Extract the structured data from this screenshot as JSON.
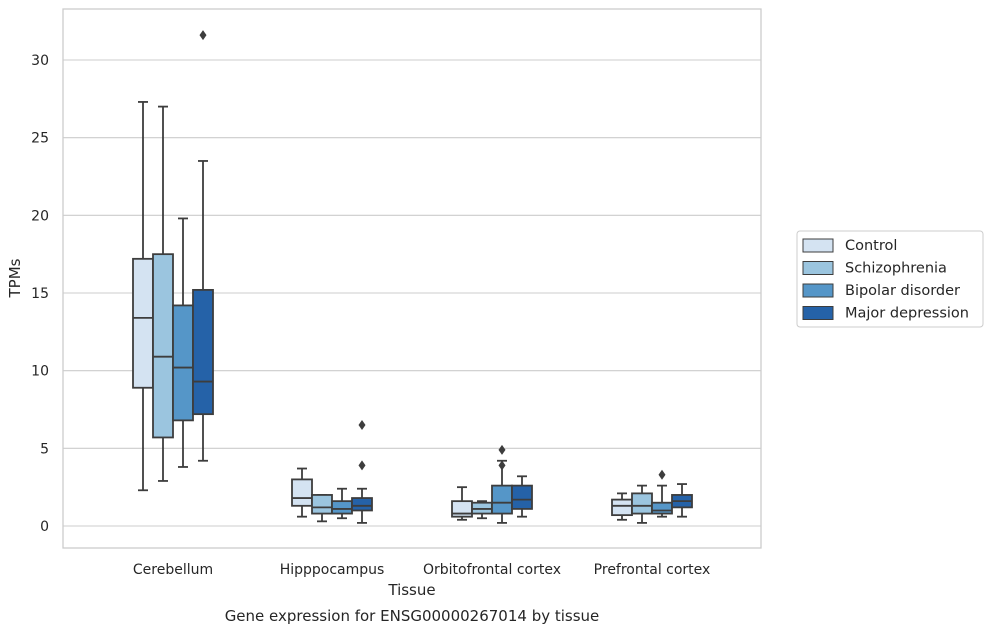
{
  "caption": "Gene expression for ENSG00000267014 by tissue",
  "colors": {
    "Control": "#d4e3f2",
    "Schizophrenia": "#9bc5df",
    "Bipolar disorder": "#5596c8",
    "Major depression": "#2562a8",
    "box_line": "#3d3d3d",
    "grid": "#cccccc",
    "frame": "#cccccc"
  },
  "chart_data": {
    "type": "box",
    "xlabel": "Tissue",
    "ylabel": "TPMs",
    "ylim": [
      -1.4,
      33.0
    ],
    "yticks": [
      0,
      5,
      10,
      15,
      20,
      25,
      30
    ],
    "grid": "horizontal",
    "legend_position": "outside-right",
    "categories": [
      "Cerebellum",
      "Hipppocampus",
      "Orbitofrontal cortex",
      "Prefrontal cortex"
    ],
    "series": [
      {
        "name": "Control",
        "boxes": [
          {
            "whislo": 2.3,
            "q1": 8.9,
            "med": 13.4,
            "q3": 17.2,
            "whishi": 27.3,
            "fliers": []
          },
          {
            "whislo": 0.6,
            "q1": 1.3,
            "med": 1.8,
            "q3": 3.0,
            "whishi": 3.7,
            "fliers": []
          },
          {
            "whislo": 0.4,
            "q1": 0.6,
            "med": 0.8,
            "q3": 1.6,
            "whishi": 2.5,
            "fliers": []
          },
          {
            "whislo": 0.4,
            "q1": 0.7,
            "med": 1.3,
            "q3": 1.7,
            "whishi": 2.1,
            "fliers": []
          }
        ]
      },
      {
        "name": "Schizophrenia",
        "boxes": [
          {
            "whislo": 2.9,
            "q1": 5.7,
            "med": 10.9,
            "q3": 17.5,
            "whishi": 27.0,
            "fliers": []
          },
          {
            "whislo": 0.3,
            "q1": 0.8,
            "med": 1.2,
            "q3": 2.0,
            "whishi": 2.0,
            "fliers": []
          },
          {
            "whislo": 0.5,
            "q1": 0.8,
            "med": 1.1,
            "q3": 1.5,
            "whishi": 1.6,
            "fliers": []
          },
          {
            "whislo": 0.2,
            "q1": 0.8,
            "med": 1.3,
            "q3": 2.1,
            "whishi": 2.6,
            "fliers": []
          }
        ]
      },
      {
        "name": "Bipolar disorder",
        "boxes": [
          {
            "whislo": 3.8,
            "q1": 6.8,
            "med": 10.2,
            "q3": 14.2,
            "whishi": 19.8,
            "fliers": []
          },
          {
            "whislo": 0.5,
            "q1": 0.8,
            "med": 1.1,
            "q3": 1.6,
            "whishi": 2.4,
            "fliers": []
          },
          {
            "whislo": 0.2,
            "q1": 0.8,
            "med": 1.5,
            "q3": 2.6,
            "whishi": 4.2,
            "fliers": [
              3.9,
              4.9
            ]
          },
          {
            "whislo": 0.6,
            "q1": 0.8,
            "med": 1.0,
            "q3": 1.5,
            "whishi": 2.6,
            "fliers": [
              3.3
            ]
          }
        ]
      },
      {
        "name": "Major depression",
        "boxes": [
          {
            "whislo": 4.2,
            "q1": 7.2,
            "med": 9.3,
            "q3": 15.2,
            "whishi": 23.5,
            "fliers": [
              31.6
            ]
          },
          {
            "whislo": 0.2,
            "q1": 1.0,
            "med": 1.3,
            "q3": 1.8,
            "whishi": 2.4,
            "fliers": [
              3.9,
              6.5
            ]
          },
          {
            "whislo": 0.6,
            "q1": 1.1,
            "med": 1.7,
            "q3": 2.6,
            "whishi": 3.2,
            "fliers": []
          },
          {
            "whislo": 0.6,
            "q1": 1.2,
            "med": 1.6,
            "q3": 2.0,
            "whishi": 2.7,
            "fliers": []
          }
        ]
      }
    ]
  }
}
